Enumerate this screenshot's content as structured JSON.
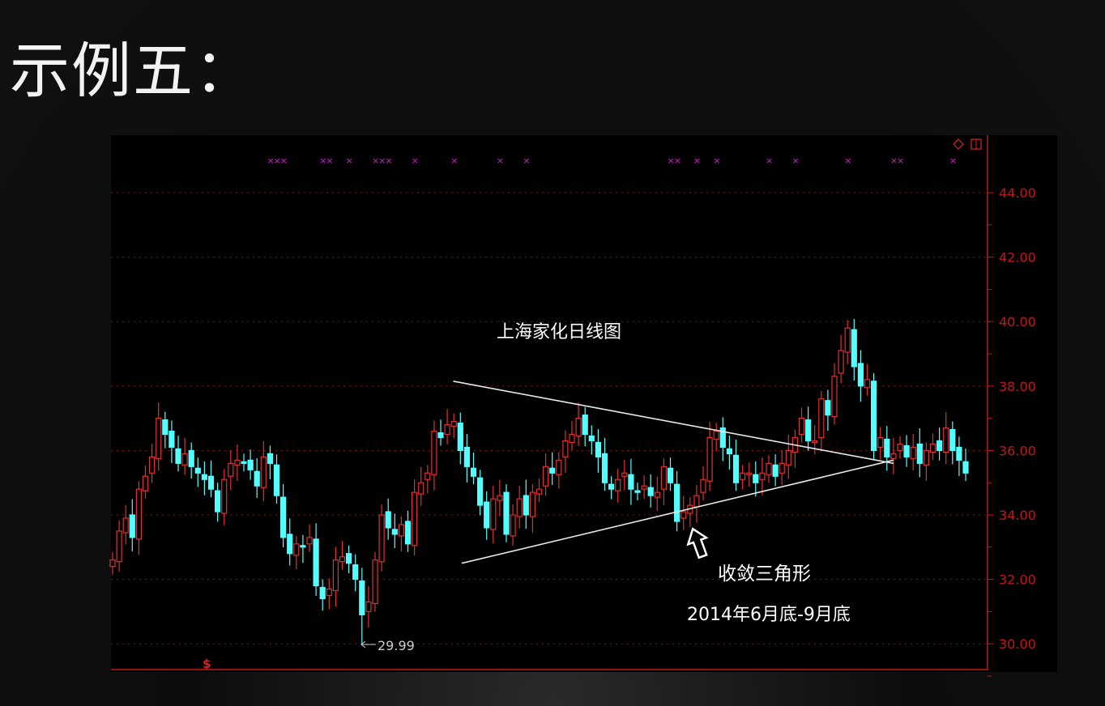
{
  "slide": {
    "title": "示例五："
  },
  "chart_data": {
    "type": "candlestick",
    "title": "上海家化日线图",
    "annotations": {
      "pattern": "收敛三角形",
      "period": "2014年6月底-9月底",
      "low_marker": "29.99"
    },
    "y_axis": {
      "position": "right",
      "ylim": [
        29.2,
        45.5
      ],
      "ticks": [
        "44.00",
        "42.00",
        "40.00",
        "38.00",
        "36.00",
        "34.00",
        "32.00",
        "30.00"
      ],
      "tick_values": [
        44,
        42,
        40,
        38,
        36,
        34,
        32,
        30
      ]
    },
    "grid": true,
    "colors": {
      "up": "#e03030",
      "down": "#54ffff",
      "axis": "#c01818",
      "grid": "#8a1010",
      "marker": "#d020d0",
      "trendline": "#e8e8e8"
    },
    "first_open": 32.3,
    "closes": [
      32.6,
      33.5,
      33.9,
      33.3,
      34.8,
      35.2,
      35.8,
      37.0,
      36.5,
      36.1,
      35.6,
      35.9,
      35.5,
      35.3,
      35.1,
      34.8,
      34.1,
      35.1,
      35.6,
      35.7,
      35.6,
      35.4,
      34.9,
      35.8,
      35.6,
      34.6,
      33.3,
      32.8,
      33.1,
      33.0,
      33.3,
      31.8,
      31.4,
      31.7,
      32.6,
      32.7,
      32.5,
      32.0,
      30.9,
      31.3,
      32.6,
      34.0,
      33.6,
      33.4,
      33.7,
      33.1,
      34.7,
      35.0,
      35.3,
      36.6,
      36.4,
      36.8,
      36.9,
      36.0,
      35.5,
      35.2,
      34.3,
      33.6,
      34.5,
      34.6,
      33.4,
      34.0,
      34.5,
      34.0,
      34.7,
      34.8,
      35.5,
      35.3,
      35.7,
      36.3,
      36.5,
      37.0,
      36.5,
      36.3,
      35.8,
      35.0,
      34.8,
      35.1,
      35.3,
      34.8,
      34.7,
      34.9,
      34.6,
      34.7,
      35.5,
      35.0,
      33.8,
      34.1,
      34.3,
      34.6,
      35.1,
      36.4,
      36.6,
      36.1,
      35.9,
      35.0,
      35.3,
      35.3,
      35.0,
      35.3,
      35.6,
      35.2,
      35.6,
      36.0,
      36.4,
      37.0,
      36.3,
      36.3,
      37.6,
      37.1,
      38.3,
      39.1,
      39.8,
      38.6,
      38.0,
      38.2,
      36.0,
      36.4,
      35.8,
      35.9,
      36.2,
      35.8,
      36.1,
      35.6,
      36.0,
      36.2,
      36.0,
      36.7,
      36.0,
      35.7,
      35.3
    ],
    "low_point": {
      "index": 38,
      "value": 29.99
    },
    "trendlines": [
      {
        "name": "upper",
        "from": [
          51.9,
          38.15
        ],
        "to": [
          119,
          35.6
        ]
      },
      {
        "name": "lower",
        "from": [
          53.2,
          32.5
        ],
        "to": [
          119,
          35.7
        ]
      }
    ],
    "signal_markers": [
      24,
      25,
      26,
      32,
      33,
      36,
      40,
      41,
      42,
      46,
      52,
      59,
      63,
      85,
      86,
      89,
      92,
      100,
      104,
      112,
      119,
      120,
      128
    ],
    "icons": {
      "top_right": [
        "diamond-icon",
        "square-icon"
      ],
      "bottom_marker": "dollar-icon"
    }
  }
}
